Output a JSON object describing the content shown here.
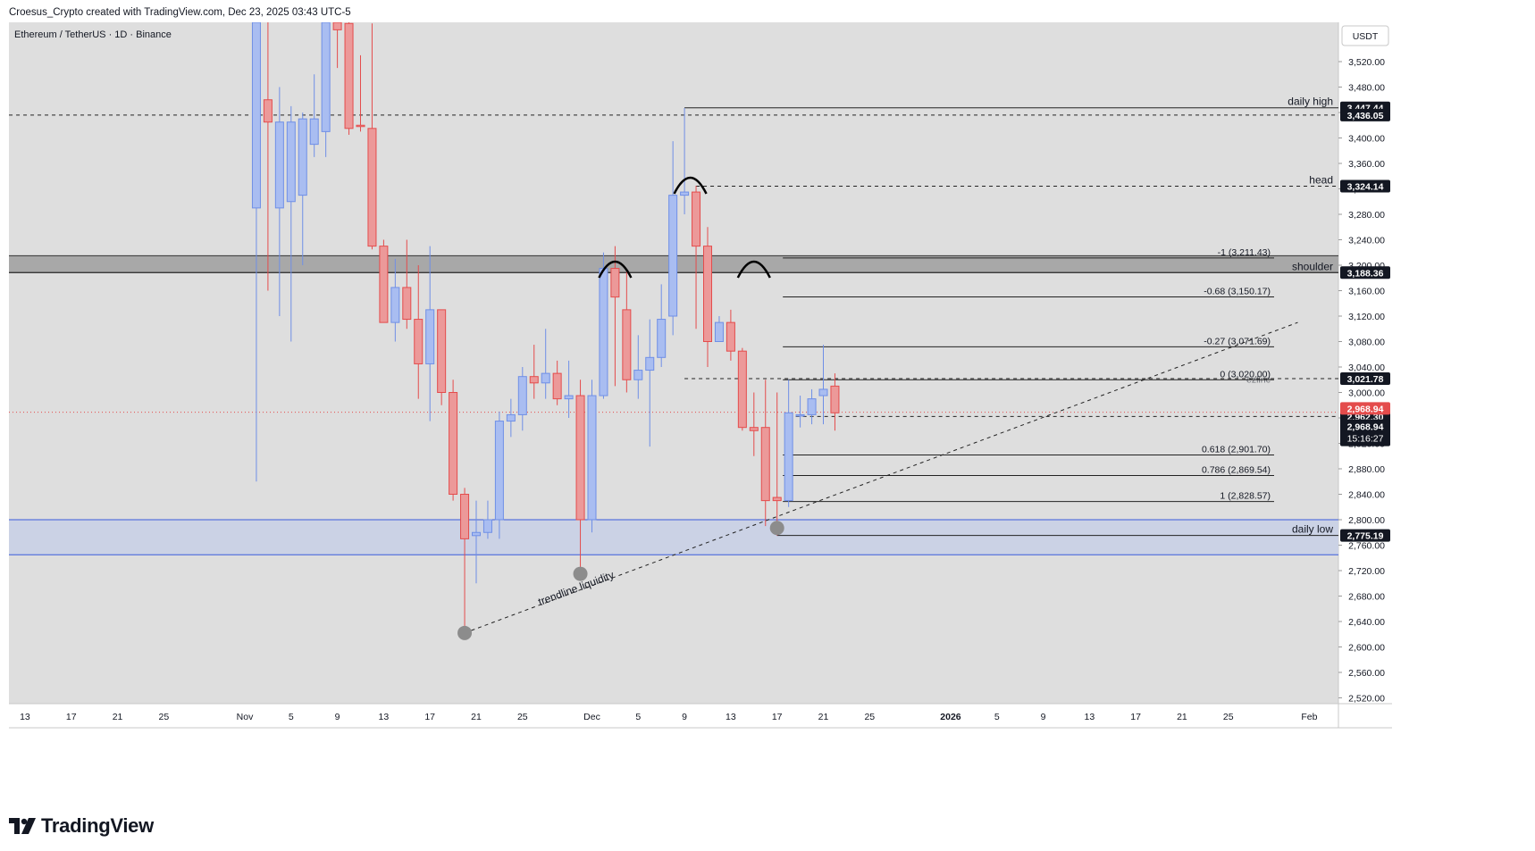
{
  "header": {
    "caption": "Croesus_Crypto created with TradingView.com, Dec 23, 2025 03:43 UTC-5"
  },
  "footer": {
    "brand": "TradingView"
  },
  "colors": {
    "up": "#6f8fe6",
    "up_fill": "#a9bdf1",
    "down": "#e44c4c",
    "down_fill": "#ec9999",
    "background": "#dedede",
    "zone_gray": "#a8a8a8",
    "zone_blue": "#c9d0e6"
  },
  "chart_data": {
    "type": "candlestick",
    "title": "Ethereum / TetherUS · 1D · Binance",
    "currency": "USDT",
    "yaxis_ticks": [
      "3,520.00",
      "3,480.00",
      "3,440.00",
      "3,400.00",
      "3,360.00",
      "3,320.00",
      "3,280.00",
      "3,240.00",
      "3,200.00",
      "3,160.00",
      "3,120.00",
      "3,080.00",
      "3,040.00",
      "3,000.00",
      "2,960.00",
      "2,920.00",
      "2,880.00",
      "2,840.00",
      "2,800.00",
      "2,760.00",
      "2,720.00",
      "2,680.00",
      "2,640.00",
      "2,600.00",
      "2,560.00",
      "2,520.00"
    ],
    "ylim": [
      2505,
      3560
    ],
    "xaxis_ticks": [
      {
        "label": "13",
        "day": -19
      },
      {
        "label": "17",
        "day": -15
      },
      {
        "label": "21",
        "day": -11
      },
      {
        "label": "25",
        "day": -7
      },
      {
        "label": "Nov",
        "day": 0
      },
      {
        "label": "5",
        "day": 4
      },
      {
        "label": "9",
        "day": 8
      },
      {
        "label": "13",
        "day": 12
      },
      {
        "label": "17",
        "day": 16
      },
      {
        "label": "21",
        "day": 20
      },
      {
        "label": "25",
        "day": 24
      },
      {
        "label": "Dec",
        "day": 30
      },
      {
        "label": "5",
        "day": 34
      },
      {
        "label": "9",
        "day": 38
      },
      {
        "label": "13",
        "day": 42
      },
      {
        "label": "17",
        "day": 46
      },
      {
        "label": "21",
        "day": 50
      },
      {
        "label": "25",
        "day": 54
      },
      {
        "label": "2026",
        "day": 61
      },
      {
        "label": "5",
        "day": 65
      },
      {
        "label": "9",
        "day": 69
      },
      {
        "label": "13",
        "day": 73
      },
      {
        "label": "17",
        "day": 77
      },
      {
        "label": "21",
        "day": 81
      },
      {
        "label": "25",
        "day": 85
      },
      {
        "label": "Feb",
        "day": 92
      }
    ],
    "candles_note": "day = days after Nov 1, 2025",
    "candles": [
      {
        "day": 1,
        "o": 3290,
        "h": 3600,
        "l": 2860,
        "c": 3600
      },
      {
        "day": 2,
        "o": 3460,
        "h": 3600,
        "l": 3160,
        "c": 3425
      },
      {
        "day": 3,
        "o": 3290,
        "h": 3480,
        "l": 3120,
        "c": 3425
      },
      {
        "day": 4,
        "o": 3300,
        "h": 3450,
        "l": 3080,
        "c": 3425
      },
      {
        "day": 5,
        "o": 3310,
        "h": 3440,
        "l": 3200,
        "c": 3430
      },
      {
        "day": 6,
        "o": 3390,
        "h": 3500,
        "l": 3370,
        "c": 3430
      },
      {
        "day": 7,
        "o": 3410,
        "h": 3650,
        "l": 3370,
        "c": 3600
      },
      {
        "day": 8,
        "o": 3590,
        "h": 3650,
        "l": 3510,
        "c": 3570
      },
      {
        "day": 9,
        "o": 3580,
        "h": 3600,
        "l": 3405,
        "c": 3415
      },
      {
        "day": 10,
        "o": 3420,
        "h": 3530,
        "l": 3410,
        "c": 3418
      },
      {
        "day": 11,
        "o": 3415,
        "h": 3580,
        "l": 3225,
        "c": 3230
      },
      {
        "day": 12,
        "o": 3230,
        "h": 3240,
        "l": 3110,
        "c": 3110
      },
      {
        "day": 13,
        "o": 3110,
        "h": 3210,
        "l": 3080,
        "c": 3165
      },
      {
        "day": 14,
        "o": 3165,
        "h": 3240,
        "l": 3100,
        "c": 3115
      },
      {
        "day": 15,
        "o": 3115,
        "h": 3200,
        "l": 2990,
        "c": 3045
      },
      {
        "day": 16,
        "o": 3045,
        "h": 3230,
        "l": 2955,
        "c": 3130
      },
      {
        "day": 17,
        "o": 3130,
        "h": 3130,
        "l": 2980,
        "c": 3000
      },
      {
        "day": 18,
        "o": 3000,
        "h": 3020,
        "l": 2830,
        "c": 2840
      },
      {
        "day": 19,
        "o": 2840,
        "h": 2850,
        "l": 2620,
        "c": 2770
      },
      {
        "day": 20,
        "o": 2775,
        "h": 2830,
        "l": 2700,
        "c": 2780
      },
      {
        "day": 21,
        "o": 2780,
        "h": 2830,
        "l": 2770,
        "c": 2800
      },
      {
        "day": 22,
        "o": 2800,
        "h": 2970,
        "l": 2770,
        "c": 2955
      },
      {
        "day": 23,
        "o": 2955,
        "h": 2990,
        "l": 2930,
        "c": 2965
      },
      {
        "day": 24,
        "o": 2965,
        "h": 3040,
        "l": 2940,
        "c": 3025
      },
      {
        "day": 25,
        "o": 3025,
        "h": 3075,
        "l": 2990,
        "c": 3015
      },
      {
        "day": 26,
        "o": 3015,
        "h": 3100,
        "l": 2990,
        "c": 3030
      },
      {
        "day": 27,
        "o": 3030,
        "h": 3050,
        "l": 2980,
        "c": 2990
      },
      {
        "day": 28,
        "o": 2990,
        "h": 3050,
        "l": 2960,
        "c": 2995
      },
      {
        "day": 29,
        "o": 2995,
        "h": 3020,
        "l": 2720,
        "c": 2800
      },
      {
        "day": 30,
        "o": 2800,
        "h": 3020,
        "l": 2780,
        "c": 2995
      },
      {
        "day": 31,
        "o": 2995,
        "h": 3220,
        "l": 2990,
        "c": 3195
      },
      {
        "day": 32,
        "o": 3195,
        "h": 3230,
        "l": 3010,
        "c": 3150
      },
      {
        "day": 33,
        "o": 3130,
        "h": 3190,
        "l": 3000,
        "c": 3020
      },
      {
        "day": 34,
        "o": 3020,
        "h": 3090,
        "l": 2990,
        "c": 3035
      },
      {
        "day": 35,
        "o": 3035,
        "h": 3115,
        "l": 2915,
        "c": 3055
      },
      {
        "day": 36,
        "o": 3055,
        "h": 3170,
        "l": 3040,
        "c": 3115
      },
      {
        "day": 37,
        "o": 3120,
        "h": 3395,
        "l": 3090,
        "c": 3310
      },
      {
        "day": 38,
        "o": 3310,
        "h": 3447,
        "l": 3280,
        "c": 3315
      },
      {
        "day": 39,
        "o": 3315,
        "h": 3325,
        "l": 3100,
        "c": 3230
      },
      {
        "day": 40,
        "o": 3230,
        "h": 3260,
        "l": 3040,
        "c": 3080
      },
      {
        "day": 41,
        "o": 3080,
        "h": 3120,
        "l": 3080,
        "c": 3110
      },
      {
        "day": 42,
        "o": 3110,
        "h": 3130,
        "l": 3050,
        "c": 3065
      },
      {
        "day": 43,
        "o": 3065,
        "h": 3070,
        "l": 2940,
        "c": 2945
      },
      {
        "day": 44,
        "o": 2945,
        "h": 3000,
        "l": 2900,
        "c": 2940
      },
      {
        "day": 45,
        "o": 2945,
        "h": 3020,
        "l": 2790,
        "c": 2830
      },
      {
        "day": 46,
        "o": 2835,
        "h": 3000,
        "l": 2775,
        "c": 2830
      },
      {
        "day": 47,
        "o": 2830,
        "h": 3020,
        "l": 2820,
        "c": 2968
      },
      {
        "day": 48,
        "o": 2965,
        "h": 2995,
        "l": 2945,
        "c": 2965
      },
      {
        "day": 49,
        "o": 2965,
        "h": 3005,
        "l": 2950,
        "c": 2990
      },
      {
        "day": 50,
        "o": 2995,
        "h": 3075,
        "l": 2950,
        "c": 3005
      },
      {
        "day": 51,
        "o": 3010,
        "h": 3030,
        "l": 2940,
        "c": 2968
      }
    ],
    "zones": [
      {
        "name": "resistance",
        "from": 3188.36,
        "to": 3215
      },
      {
        "name": "support",
        "from": 2745,
        "to": 2800
      }
    ],
    "levels": [
      {
        "label": "daily high",
        "value": 3447.44,
        "style": "solid",
        "start_day": 38,
        "tag": "3,447.44",
        "tag_color": "#131722"
      },
      {
        "label": "",
        "value": 3436.05,
        "style": "dashed",
        "start_day": -21,
        "tag": "3,436.05",
        "tag_color": "#131722"
      },
      {
        "label": "head",
        "value": 3324.14,
        "style": "dashed",
        "start_day": 39,
        "tag": "3,324.14",
        "tag_color": "#131722"
      },
      {
        "label": "shoulder",
        "value": 3188.36,
        "style": "solid",
        "start_day": -21,
        "tag": "3,188.36",
        "tag_color": "#131722"
      },
      {
        "label": "",
        "value": 3021.78,
        "style": "dashed",
        "start_day": 38,
        "tag": "3,021.78",
        "tag_color": "#131722"
      },
      {
        "label": "",
        "value": 2962.3,
        "style": "dashed",
        "start_day": 47,
        "tag": "2,962.30",
        "tag_color": "#131722"
      },
      {
        "label": "daily low",
        "value": 2775.19,
        "style": "solid",
        "start_day": 46,
        "tag": "2,775.19",
        "tag_color": "#131722"
      }
    ],
    "current_price": {
      "value": "2,968.94",
      "time_left": "15:16:27",
      "price": 2968.94
    },
    "fib": [
      {
        "label": "-1 (3,211.43)",
        "value": 3211.43
      },
      {
        "label": "-0.68 (3,150.17)",
        "value": 3150.17
      },
      {
        "label": "-0.27 (3,071.69)",
        "value": 3071.69
      },
      {
        "label": "0 (3,020.00)",
        "value": 3020.0
      },
      {
        "label": "0.618 (2,901.70)",
        "value": 2901.7
      },
      {
        "label": "0.786 (2,869.54)",
        "value": 2869.54
      },
      {
        "label": "1 (2,828.57)",
        "value": 2828.57
      }
    ],
    "annotations": [
      {
        "text": "trendline liquidity"
      },
      {
        "text": "ezlinc"
      }
    ],
    "trendline": {
      "from": {
        "day": 19,
        "price": 2622
      },
      "to": {
        "day": 91,
        "price": 3110
      }
    },
    "pivots": [
      {
        "day": 19,
        "price": 2622
      },
      {
        "day": 29,
        "price": 2715
      },
      {
        "day": 46,
        "price": 2787
      }
    ],
    "arcs": [
      {
        "day": 32,
        "price": 3200
      },
      {
        "day": 38.5,
        "price": 3332
      },
      {
        "day": 44,
        "price": 3200
      }
    ]
  }
}
